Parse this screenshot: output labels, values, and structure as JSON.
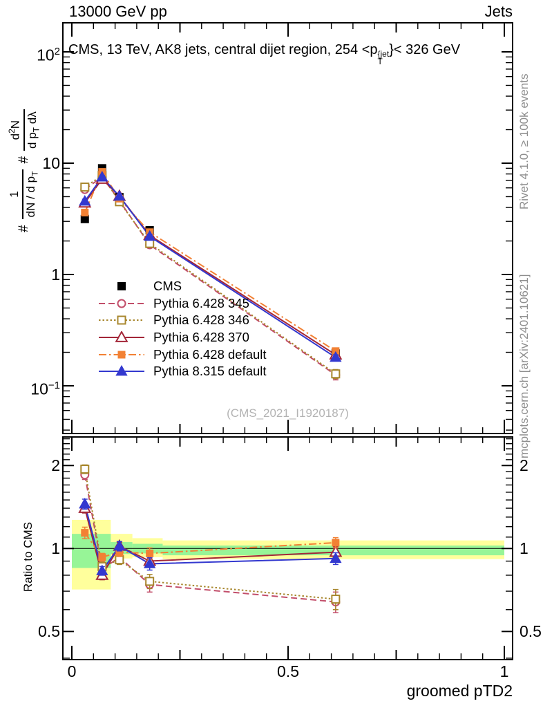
{
  "header": {
    "left": "13000 GeV pp",
    "right": "Jets"
  },
  "panel_title": {
    "pre": "CMS, 13 TeV, AK8 jets, central dijet region, 254 <p",
    "sup": "{jet",
    "sub": "T",
    "post": "}< 326 GeV"
  },
  "ylabel_main": {
    "hash1": "#",
    "frac1": {
      "num": "1",
      "den_pre": "dN / d p",
      "den_sub": "T"
    },
    "hash2": "#",
    "frac2": {
      "num_pre": "d",
      "num_sup": "2",
      "num_post": "N",
      "den_pre": "d p",
      "den_sub": "T",
      "den_post": " dλ"
    }
  },
  "watermark": "(CMS_2021_I1920187)",
  "side_notes": {
    "top": "Rivet 4.1.0, ≥ 100k events",
    "bottom": "mcplots.cern.ch [arXiv:2401.10621]"
  },
  "axes": {
    "x": {
      "ticks": [
        "0",
        "0.5",
        "1"
      ],
      "label": "groomed pTD2",
      "range": [
        -0.02,
        1.02
      ]
    },
    "y_main": {
      "scale": "log",
      "tick_100": {
        "base": "10",
        "exp": "2"
      },
      "tick_10": "10",
      "tick_1": "1",
      "tick_01": {
        "base": "10",
        "exp": "−1"
      }
    },
    "y_ratio": {
      "scale": "log",
      "ticks": [
        "2",
        "1",
        "0.5"
      ],
      "label": "Ratio to CMS"
    }
  },
  "chart_data": {
    "type": "line",
    "title": "CMS, 13 TeV, AK8 jets, central dijet region, 254 < pT(jet) < 326 GeV",
    "xlabel": "groomed pTD2",
    "x": [
      0.03,
      0.07,
      0.11,
      0.18,
      0.61
    ],
    "main": {
      "ylog": true,
      "ylim": [
        0.04,
        180
      ],
      "series": [
        {
          "name": "CMS",
          "color": "#000000",
          "marker": "square-filled",
          "msize": 12,
          "line": "none",
          "values": [
            3.15,
            9.0,
            4.95,
            2.5,
            0.195
          ],
          "errors": [
            0.2,
            0.35,
            0.25,
            0.12,
            0.015
          ],
          "ratio_values": null,
          "ratio_errors": null
        },
        {
          "name": "Pythia 6.428 345",
          "color": "#c24e6a",
          "marker": "circle-open",
          "msize": 11,
          "line": "dashed",
          "values": [
            5.8,
            7.55,
            4.6,
            1.85,
            0.125
          ],
          "errors": [
            0.22,
            0.28,
            0.18,
            0.09,
            0.012
          ],
          "ratio_values": [
            1.85,
            0.84,
            0.93,
            0.74,
            0.64
          ],
          "ratio_errors": [
            0.07,
            0.035,
            0.035,
            0.045,
            0.055
          ]
        },
        {
          "name": "Pythia 6.428 346",
          "color": "#a8872e",
          "marker": "square-open",
          "msize": 11,
          "line": "dotted",
          "values": [
            6.1,
            7.75,
            4.5,
            1.9,
            0.128
          ],
          "errors": [
            0.22,
            0.28,
            0.18,
            0.09,
            0.012
          ],
          "ratio_values": [
            1.94,
            0.86,
            0.91,
            0.76,
            0.655
          ],
          "ratio_errors": [
            0.07,
            0.035,
            0.035,
            0.045,
            0.055
          ]
        },
        {
          "name": "Pythia 6.428 370",
          "color": "#a32638",
          "marker": "triangle-open",
          "msize": 13,
          "line": "solid",
          "values": [
            4.4,
            7.2,
            5.05,
            2.25,
            0.19
          ],
          "errors": [
            0.18,
            0.27,
            0.18,
            0.09,
            0.01
          ],
          "ratio_values": [
            1.4,
            0.8,
            1.02,
            0.9,
            0.97
          ],
          "ratio_errors": [
            0.055,
            0.03,
            0.035,
            0.04,
            0.045
          ]
        },
        {
          "name": "Pythia 6.428 default",
          "color": "#f28134",
          "marker": "square-filled",
          "msize": 11,
          "line": "dashdot",
          "values": [
            3.6,
            8.35,
            4.8,
            2.4,
            0.205
          ],
          "errors": [
            0.18,
            0.27,
            0.18,
            0.09,
            0.01
          ],
          "ratio_values": [
            1.14,
            0.93,
            0.97,
            0.96,
            1.05
          ],
          "ratio_errors": [
            0.055,
            0.03,
            0.035,
            0.045,
            0.045
          ]
        },
        {
          "name": "Pythia 8.315 default",
          "color": "#3338cf",
          "marker": "triangle-filled",
          "msize": 13,
          "line": "solid",
          "values": [
            4.55,
            7.5,
            5.05,
            2.2,
            0.18
          ],
          "errors": [
            0.2,
            0.27,
            0.2,
            0.1,
            0.01
          ],
          "ratio_values": [
            1.45,
            0.83,
            1.02,
            0.88,
            0.92
          ],
          "ratio_errors": [
            0.06,
            0.03,
            0.04,
            0.045,
            0.045
          ]
        }
      ]
    },
    "ratio": {
      "ylog": true,
      "ylim": [
        0.39,
        2.55
      ],
      "reference": 1,
      "band_colors": {
        "yellow": "#ffff9c",
        "green": "#97f597"
      },
      "bands": [
        {
          "x0": 0.0,
          "x1": 0.09,
          "yellow": [
            0.71,
            1.27
          ],
          "green": [
            0.85,
            1.13
          ]
        },
        {
          "x0": 0.09,
          "x1": 0.14,
          "yellow": [
            0.92,
            1.13
          ],
          "green": [
            0.955,
            1.055
          ]
        },
        {
          "x0": 0.14,
          "x1": 0.21,
          "yellow": [
            0.93,
            1.09
          ],
          "green": [
            0.96,
            1.04
          ]
        },
        {
          "x0": 0.21,
          "x1": 1.0,
          "yellow": [
            0.915,
            1.07
          ],
          "green": [
            0.945,
            1.025
          ]
        }
      ]
    },
    "legend_position": "upper-left-inside"
  }
}
